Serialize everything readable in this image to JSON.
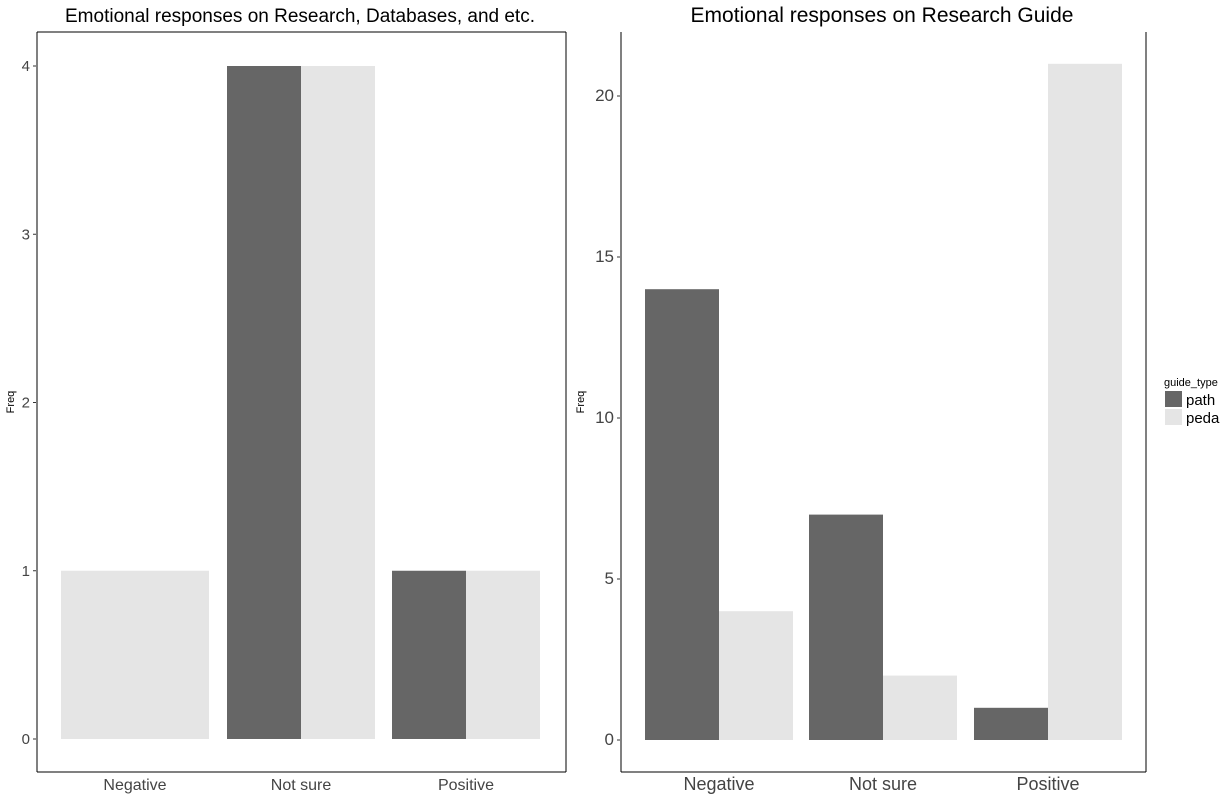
{
  "chart_data": [
    {
      "type": "bar",
      "title": "Emotional responses on Research, Databases, and etc.",
      "xlabel": "",
      "ylabel": "Freq",
      "categories": [
        "Negative",
        "Not sure",
        "Positive"
      ],
      "series": [
        {
          "name": "path",
          "values": [
            0,
            4,
            1
          ],
          "color": "#666666"
        },
        {
          "name": "peda",
          "values": [
            1,
            4,
            1
          ],
          "color": "#e5e5e5"
        }
      ],
      "ylim": [
        0,
        4
      ],
      "yticks": [
        0,
        1,
        2,
        3,
        4
      ],
      "grid": false,
      "legend": "none",
      "note": "Negative has only a single full-width peda bar"
    },
    {
      "type": "bar",
      "title": "Emotional responses on Research Guide",
      "xlabel": "",
      "ylabel": "Freq",
      "categories": [
        "Negative",
        "Not sure",
        "Positive"
      ],
      "series": [
        {
          "name": "path",
          "values": [
            14,
            7,
            1
          ],
          "color": "#666666"
        },
        {
          "name": "peda",
          "values": [
            4,
            2,
            21
          ],
          "color": "#e5e5e5"
        }
      ],
      "ylim": [
        0,
        21
      ],
      "yticks": [
        0,
        5,
        10,
        15,
        20
      ],
      "grid": false,
      "legend": "right"
    }
  ],
  "legend": {
    "title": "guide_type",
    "items": [
      {
        "label": "path",
        "color": "#666666"
      },
      {
        "label": "peda",
        "color": "#e5e5e5"
      }
    ]
  }
}
